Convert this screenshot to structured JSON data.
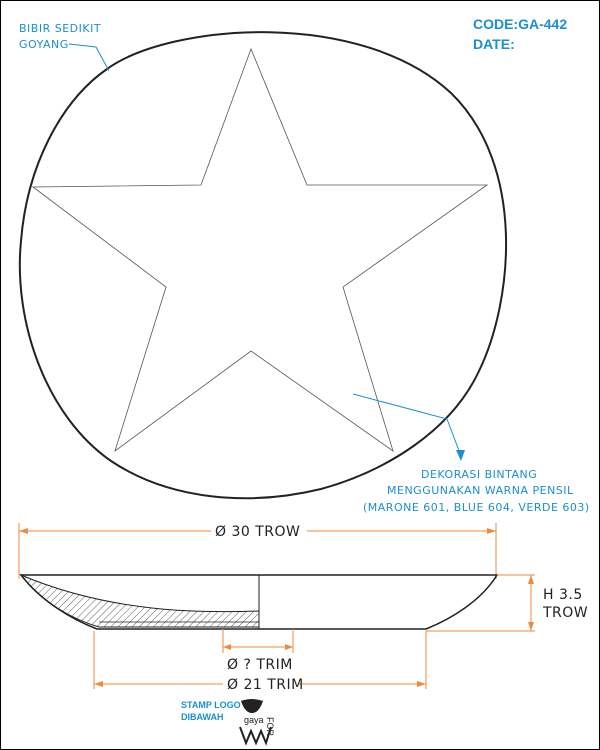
{
  "header": {
    "code": "CODE:GA-442",
    "date": "DATE:"
  },
  "notes": {
    "rim_line1": "BIBIR SEDIKIT",
    "rim_line2": "GOYANG",
    "decoration_line1": "DEKORASI BINTANG",
    "decoration_line2": "MENGGUNAKAN WARNA PENSIL",
    "decoration_line3": "(MARONE 601, BLUE 604, VERDE 603)"
  },
  "dimensions": {
    "diameter": "Ø 30 TROW",
    "height_line1": "H 3.5",
    "height_line2": "TROW",
    "trim_small": "Ø ? TRIM",
    "trim_base": "Ø 21 TRIM"
  },
  "stamp": {
    "line1": "STAMP LOGO",
    "line2": "DIBAWAH",
    "brand": "gaya",
    "for": "FOR"
  },
  "colors": {
    "annotation": "#1a8fd1",
    "dimension": "#f08a3c",
    "outline": "#222222"
  }
}
